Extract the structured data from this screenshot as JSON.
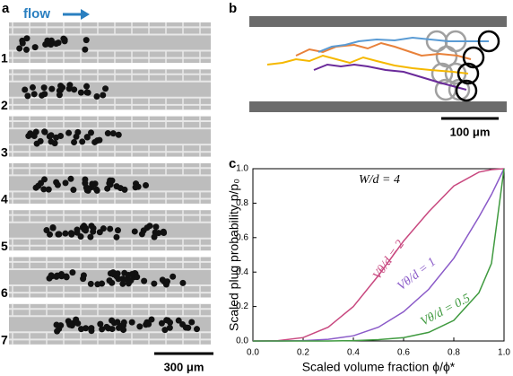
{
  "panel_labels": [
    "a",
    "b",
    "c"
  ],
  "flow_label": "flow",
  "row_labels": [
    "1",
    "2",
    "3",
    "4",
    "5",
    "6",
    "7"
  ],
  "scale_bar_a": "300 μm",
  "scale_bar_b": "100 μm",
  "chart_data": {
    "type": "line",
    "annotation": "W/d = 4",
    "xlabel": "Scaled volume fraction ϕ/ϕ*",
    "ylabel": "Scaled plug probability p/p₀",
    "x": [
      0,
      0.1,
      0.2,
      0.3,
      0.4,
      0.5,
      0.6,
      0.7,
      0.8,
      0.9,
      0.95,
      1.0
    ],
    "series": [
      {
        "name": "Vθ/d = 2",
        "color": "#c8487f",
        "values": [
          0,
          0.002,
          0.02,
          0.08,
          0.2,
          0.38,
          0.58,
          0.75,
          0.9,
          0.98,
          0.995,
          1.0
        ]
      },
      {
        "name": "Vθ/d = 1",
        "color": "#8a5ac8",
        "values": [
          0,
          0,
          0.002,
          0.01,
          0.03,
          0.08,
          0.17,
          0.3,
          0.48,
          0.72,
          0.85,
          1.0
        ]
      },
      {
        "name": "Vθ/d = 0.5",
        "color": "#3f9a3f",
        "values": [
          0,
          0,
          0,
          0,
          0.002,
          0.008,
          0.02,
          0.05,
          0.12,
          0.28,
          0.45,
          1.0
        ]
      }
    ],
    "xlim": [
      0,
      1
    ],
    "ylim": [
      0,
      1
    ],
    "xticks": [
      {
        "value": 0,
        "label": "0.0"
      },
      0.2,
      0.4,
      0.6,
      0.8,
      {
        "value": 1,
        "label": "1.0"
      }
    ],
    "yticks": [
      {
        "value": 0,
        "label": "0.0"
      },
      0.2,
      0.4,
      0.6,
      0.8,
      {
        "value": 1,
        "label": "1.0"
      }
    ]
  }
}
